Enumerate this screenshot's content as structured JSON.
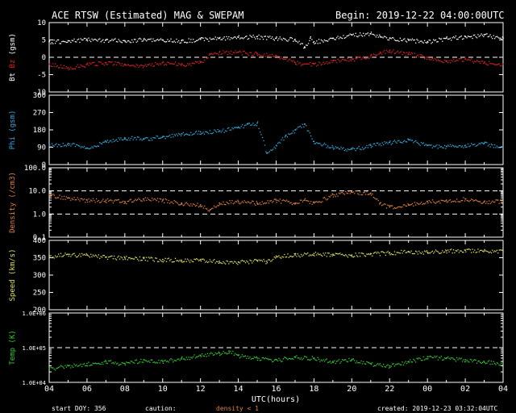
{
  "header": {
    "title": "ACE RTSW (Estimated) MAG & SWEPAM",
    "begin": "Begin: 2019-12-22 04:00:00UTC"
  },
  "footer": {
    "start_doy": "start DOY: 356",
    "caution": "caution:",
    "caution_note": "density < 1",
    "created": "created: 2019-12-23 03:32:04UTC"
  },
  "colors": {
    "bt": "#ffffff",
    "bz": "#dd2222",
    "phi": "#33aadd",
    "density": "#e08040",
    "speed": "#e0e060",
    "temp": "#33cc33",
    "axes": "#ffffff",
    "background": "#000000"
  },
  "chart_data": {
    "type": "scatter",
    "x_label": "UTC(hours)",
    "x_ticks": [
      "04",
      "06",
      "08",
      "10",
      "12",
      "14",
      "16",
      "18",
      "20",
      "22",
      "00",
      "02",
      "04"
    ],
    "x_range_hours": [
      0,
      24
    ],
    "panels": [
      {
        "key": "mag",
        "ylabel_parts": [
          "Bt",
          " Bz",
          " (gsm)"
        ],
        "ylim": [
          -10,
          10
        ],
        "yscale": "linear",
        "yticks": [
          10,
          5,
          0,
          -5,
          -10
        ],
        "ytick_labels": [
          "10",
          "5",
          "0",
          "-5",
          "-10"
        ],
        "dashed": [
          0
        ],
        "series": [
          {
            "color_key": "bt",
            "points": [
              [
                0,
                4.5
              ],
              [
                1,
                4.8
              ],
              [
                2,
                5.2
              ],
              [
                3,
                5.0
              ],
              [
                4,
                4.8
              ],
              [
                5,
                5.2
              ],
              [
                6,
                5.0
              ],
              [
                7,
                4.8
              ],
              [
                8,
                5.2
              ],
              [
                9,
                5.5
              ],
              [
                10,
                5.8
              ],
              [
                11,
                6.0
              ],
              [
                12,
                5.5
              ],
              [
                13,
                5.2
              ],
              [
                13.5,
                3.0
              ],
              [
                13.8,
                5.5
              ],
              [
                14,
                4.5
              ],
              [
                15,
                5.5
              ],
              [
                16,
                6.5
              ],
              [
                17,
                6.8
              ],
              [
                17.5,
                6.0
              ],
              [
                18,
                5.5
              ],
              [
                19,
                5.0
              ],
              [
                20,
                4.5
              ],
              [
                21,
                5.5
              ],
              [
                22,
                6.0
              ],
              [
                23,
                6.5
              ],
              [
                24,
                5.5
              ]
            ]
          },
          {
            "color_key": "bz",
            "points": [
              [
                0,
                -2.0
              ],
              [
                1,
                -3.0
              ],
              [
                2,
                -2.0
              ],
              [
                3,
                -1.5
              ],
              [
                4,
                -2.0
              ],
              [
                5,
                -2.5
              ],
              [
                6,
                -1.5
              ],
              [
                7,
                -2.0
              ],
              [
                8,
                -1.5
              ],
              [
                8.5,
                1.0
              ],
              [
                9,
                1.5
              ],
              [
                10,
                1.5
              ],
              [
                11,
                1.0
              ],
              [
                12,
                0.5
              ],
              [
                13,
                -1.5
              ],
              [
                14,
                -2.0
              ],
              [
                15,
                -1.0
              ],
              [
                16,
                -0.5
              ],
              [
                17,
                0.5
              ],
              [
                17.5,
                1.5
              ],
              [
                18,
                2.0
              ],
              [
                19,
                1.0
              ],
              [
                20,
                0.0
              ],
              [
                21,
                -1.0
              ],
              [
                22,
                -0.5
              ],
              [
                23,
                -1.5
              ],
              [
                24,
                -2.0
              ]
            ]
          }
        ]
      },
      {
        "key": "phi",
        "ylabel_parts": [
          "Phi (gsm)"
        ],
        "ylim": [
          0,
          360
        ],
        "yscale": "linear",
        "yticks": [
          360,
          270,
          180,
          90,
          0
        ],
        "ytick_labels": [
          "360",
          "270",
          "180",
          "90",
          "0"
        ],
        "dashed": [],
        "series": [
          {
            "color_key": "phi",
            "points": [
              [
                0,
                100
              ],
              [
                1,
                110
              ],
              [
                2,
                85
              ],
              [
                3,
                120
              ],
              [
                4,
                140
              ],
              [
                5,
                135
              ],
              [
                6,
                145
              ],
              [
                7,
                160
              ],
              [
                8,
                170
              ],
              [
                9,
                175
              ],
              [
                10,
                195
              ],
              [
                10.5,
                210
              ],
              [
                11,
                215
              ],
              [
                11.5,
                60
              ],
              [
                12,
                100
              ],
              [
                12.5,
                150
              ],
              [
                13,
                180
              ],
              [
                13.5,
                210
              ],
              [
                14,
                120
              ],
              [
                15,
                90
              ],
              [
                16,
                80
              ],
              [
                17,
                100
              ],
              [
                18,
                115
              ],
              [
                19,
                130
              ],
              [
                20,
                100
              ],
              [
                21,
                95
              ],
              [
                22,
                100
              ],
              [
                23,
                110
              ],
              [
                24,
                90
              ]
            ]
          }
        ]
      },
      {
        "key": "density",
        "ylabel_parts": [
          "Density (/cm3)"
        ],
        "ylim": [
          0.1,
          100
        ],
        "yscale": "log",
        "yticks": [
          100,
          10,
          1,
          0.1
        ],
        "ytick_labels": [
          "100.0",
          "10.0",
          "1.0",
          "0.1"
        ],
        "dashed": [
          10,
          1
        ],
        "series": [
          {
            "color_key": "density",
            "points": [
              [
                0,
                7
              ],
              [
                1,
                5
              ],
              [
                2,
                4
              ],
              [
                3,
                4
              ],
              [
                4,
                3.5
              ],
              [
                5,
                4.5
              ],
              [
                6,
                4
              ],
              [
                7,
                3
              ],
              [
                8,
                2.5
              ],
              [
                8.5,
                1.5
              ],
              [
                9,
                3
              ],
              [
                10,
                3.5
              ],
              [
                11,
                3
              ],
              [
                12,
                4
              ],
              [
                13,
                3
              ],
              [
                13.5,
                4
              ],
              [
                14,
                3
              ],
              [
                15,
                7
              ],
              [
                16,
                9
              ],
              [
                17,
                8
              ],
              [
                17.5,
                3
              ],
              [
                18,
                2
              ],
              [
                19,
                2.5
              ],
              [
                20,
                3.5
              ],
              [
                21,
                4
              ],
              [
                22,
                4.5
              ],
              [
                23,
                3.5
              ],
              [
                24,
                3.5
              ]
            ]
          }
        ]
      },
      {
        "key": "speed",
        "ylabel_parts": [
          "Speed (km/s)"
        ],
        "ylim": [
          200,
          400
        ],
        "yscale": "linear",
        "yticks": [
          400,
          350,
          300,
          250,
          200
        ],
        "ytick_labels": [
          "400",
          "350",
          "300",
          "250",
          "200"
        ],
        "dashed": [],
        "series": [
          {
            "color_key": "speed",
            "points": [
              [
                0,
                355
              ],
              [
                1,
                360
              ],
              [
                2,
                358
              ],
              [
                3,
                352
              ],
              [
                4,
                350
              ],
              [
                5,
                348
              ],
              [
                6,
                345
              ],
              [
                7,
                343
              ],
              [
                8,
                345
              ],
              [
                9,
                340
              ],
              [
                10,
                338
              ],
              [
                11,
                342
              ],
              [
                11.5,
                340
              ],
              [
                12,
                355
              ],
              [
                13,
                358
              ],
              [
                14,
                362
              ],
              [
                15,
                360
              ],
              [
                16,
                358
              ],
              [
                17,
                362
              ],
              [
                18,
                365
              ],
              [
                19,
                368
              ],
              [
                20,
                366
              ],
              [
                21,
                370
              ],
              [
                22,
                372
              ],
              [
                23,
                370
              ],
              [
                24,
                368
              ]
            ]
          }
        ]
      },
      {
        "key": "temp",
        "ylabel_parts": [
          "Temp (K)"
        ],
        "ylim": [
          10000,
          1000000
        ],
        "yscale": "log",
        "yticks": [
          1000000,
          100000,
          10000
        ],
        "ytick_labels": [
          "1.0E+06",
          "1.0E+05",
          "1.0E+04"
        ],
        "dashed": [
          100000
        ],
        "series": [
          {
            "color_key": "temp",
            "points": [
              [
                0,
                25000
              ],
              [
                1,
                30000
              ],
              [
                2,
                35000
              ],
              [
                3,
                40000
              ],
              [
                4,
                35000
              ],
              [
                5,
                45000
              ],
              [
                6,
                40000
              ],
              [
                7,
                50000
              ],
              [
                8,
                60000
              ],
              [
                9,
                70000
              ],
              [
                9.5,
                80000
              ],
              [
                10,
                60000
              ],
              [
                11,
                50000
              ],
              [
                12,
                45000
              ],
              [
                13,
                55000
              ],
              [
                14,
                50000
              ],
              [
                15,
                40000
              ],
              [
                16,
                45000
              ],
              [
                17,
                35000
              ],
              [
                18,
                30000
              ],
              [
                19,
                40000
              ],
              [
                20,
                55000
              ],
              [
                21,
                50000
              ],
              [
                22,
                45000
              ],
              [
                23,
                40000
              ],
              [
                24,
                35000
              ]
            ]
          }
        ]
      }
    ]
  }
}
